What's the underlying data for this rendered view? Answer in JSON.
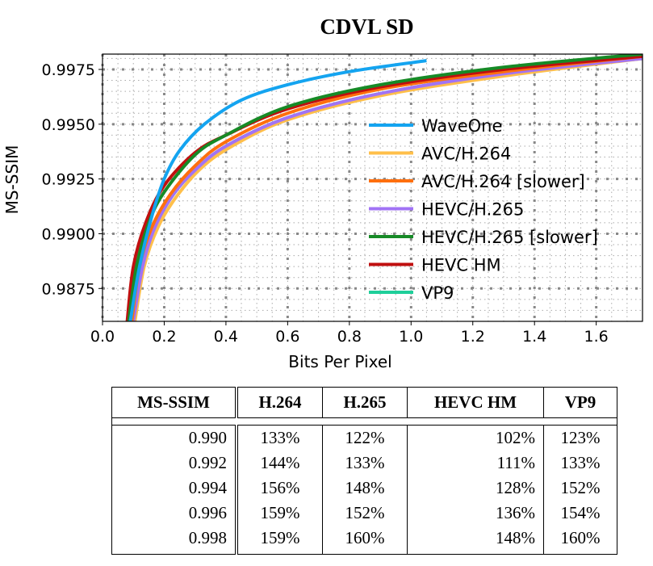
{
  "chart_data": {
    "type": "line",
    "title": "CDVL SD",
    "xlabel": "Bits Per Pixel",
    "ylabel": "MS-SSIM",
    "xlim": [
      0,
      1.75
    ],
    "ylim": [
      0.986,
      0.9982
    ],
    "xticks": [
      "0.0",
      "0.2",
      "0.4",
      "0.6",
      "0.8",
      "1.0",
      "1.2",
      "1.4",
      "1.6"
    ],
    "yticks": [
      "0.9875",
      "0.9900",
      "0.9925",
      "0.9950",
      "0.9975"
    ],
    "grid": true,
    "legend_position": "center-right",
    "series": [
      {
        "name": "VP9",
        "color": "#1fcf9a",
        "points": [
          [
            0.1,
            0.986
          ],
          [
            0.13,
            0.9885
          ],
          [
            0.17,
            0.9903
          ],
          [
            0.23,
            0.9918
          ],
          [
            0.3,
            0.9929
          ],
          [
            0.4,
            0.994
          ],
          [
            0.6,
            0.9953
          ],
          [
            0.9,
            0.9964
          ],
          [
            1.3,
            0.9973
          ],
          [
            1.75,
            0.998
          ]
        ]
      },
      {
        "name": "AVC/H.264",
        "color": "#ffbf4a",
        "points": [
          [
            0.105,
            0.986
          ],
          [
            0.135,
            0.9885
          ],
          [
            0.18,
            0.9903
          ],
          [
            0.24,
            0.9917
          ],
          [
            0.32,
            0.993
          ],
          [
            0.42,
            0.994
          ],
          [
            0.6,
            0.9952
          ],
          [
            0.9,
            0.9963
          ],
          [
            1.3,
            0.9972
          ],
          [
            1.75,
            0.998
          ]
        ]
      },
      {
        "name": "HEVC/H.265",
        "color": "#a173f5",
        "points": [
          [
            0.1,
            0.986
          ],
          [
            0.13,
            0.9885
          ],
          [
            0.17,
            0.9903
          ],
          [
            0.23,
            0.9918
          ],
          [
            0.3,
            0.9929
          ],
          [
            0.4,
            0.994
          ],
          [
            0.6,
            0.9953
          ],
          [
            0.9,
            0.9964
          ],
          [
            1.3,
            0.9973
          ],
          [
            1.75,
            0.998
          ]
        ]
      },
      {
        "name": "AVC/H.264 [slower]",
        "color": "#ff6f0e",
        "points": [
          [
            0.095,
            0.986
          ],
          [
            0.12,
            0.9885
          ],
          [
            0.16,
            0.9903
          ],
          [
            0.22,
            0.9918
          ],
          [
            0.3,
            0.9931
          ],
          [
            0.4,
            0.9942
          ],
          [
            0.6,
            0.9955
          ],
          [
            0.9,
            0.9966
          ],
          [
            1.3,
            0.9974
          ],
          [
            1.75,
            0.9981
          ]
        ]
      },
      {
        "name": "HEVC HM",
        "color": "#c00f0f",
        "points": [
          [
            0.08,
            0.986
          ],
          [
            0.1,
            0.9885
          ],
          [
            0.14,
            0.9905
          ],
          [
            0.2,
            0.9922
          ],
          [
            0.3,
            0.9937
          ],
          [
            0.4,
            0.9945
          ],
          [
            0.6,
            0.9957
          ],
          [
            0.9,
            0.9967
          ],
          [
            1.3,
            0.9975
          ],
          [
            1.75,
            0.9981
          ]
        ]
      },
      {
        "name": "HEVC/H.265 [slower]",
        "color": "#168a26",
        "points": [
          [
            0.085,
            0.986
          ],
          [
            0.11,
            0.9885
          ],
          [
            0.15,
            0.9905
          ],
          [
            0.2,
            0.9919
          ],
          [
            0.3,
            0.9936
          ],
          [
            0.4,
            0.9945
          ],
          [
            0.6,
            0.9958
          ],
          [
            0.9,
            0.9968
          ],
          [
            1.3,
            0.9976
          ],
          [
            1.75,
            0.9982
          ]
        ]
      },
      {
        "name": "WaveOne",
        "color": "#14a4f0",
        "points": [
          [
            0.09,
            0.986
          ],
          [
            0.12,
            0.9885
          ],
          [
            0.16,
            0.9908
          ],
          [
            0.2,
            0.9925
          ],
          [
            0.25,
            0.9938
          ],
          [
            0.33,
            0.995
          ],
          [
            0.45,
            0.9961
          ],
          [
            0.6,
            0.9968
          ],
          [
            0.8,
            0.9974
          ],
          [
            1.05,
            0.9979
          ]
        ]
      }
    ],
    "legend_order": [
      "WaveOne",
      "AVC/H.264",
      "AVC/H.264 [slower]",
      "HEVC/H.265",
      "HEVC/H.265 [slower]",
      "HEVC HM",
      "VP9"
    ]
  },
  "table": {
    "headers": [
      "MS-SSIM",
      "H.264",
      "H.265",
      "HEVC HM",
      "VP9"
    ],
    "rows": [
      [
        "0.990",
        "133%",
        "122%",
        "102%",
        "123%"
      ],
      [
        "0.992",
        "144%",
        "133%",
        "111%",
        "133%"
      ],
      [
        "0.994",
        "156%",
        "148%",
        "128%",
        "152%"
      ],
      [
        "0.996",
        "159%",
        "152%",
        "136%",
        "154%"
      ],
      [
        "0.998",
        "159%",
        "160%",
        "148%",
        "160%"
      ]
    ]
  }
}
